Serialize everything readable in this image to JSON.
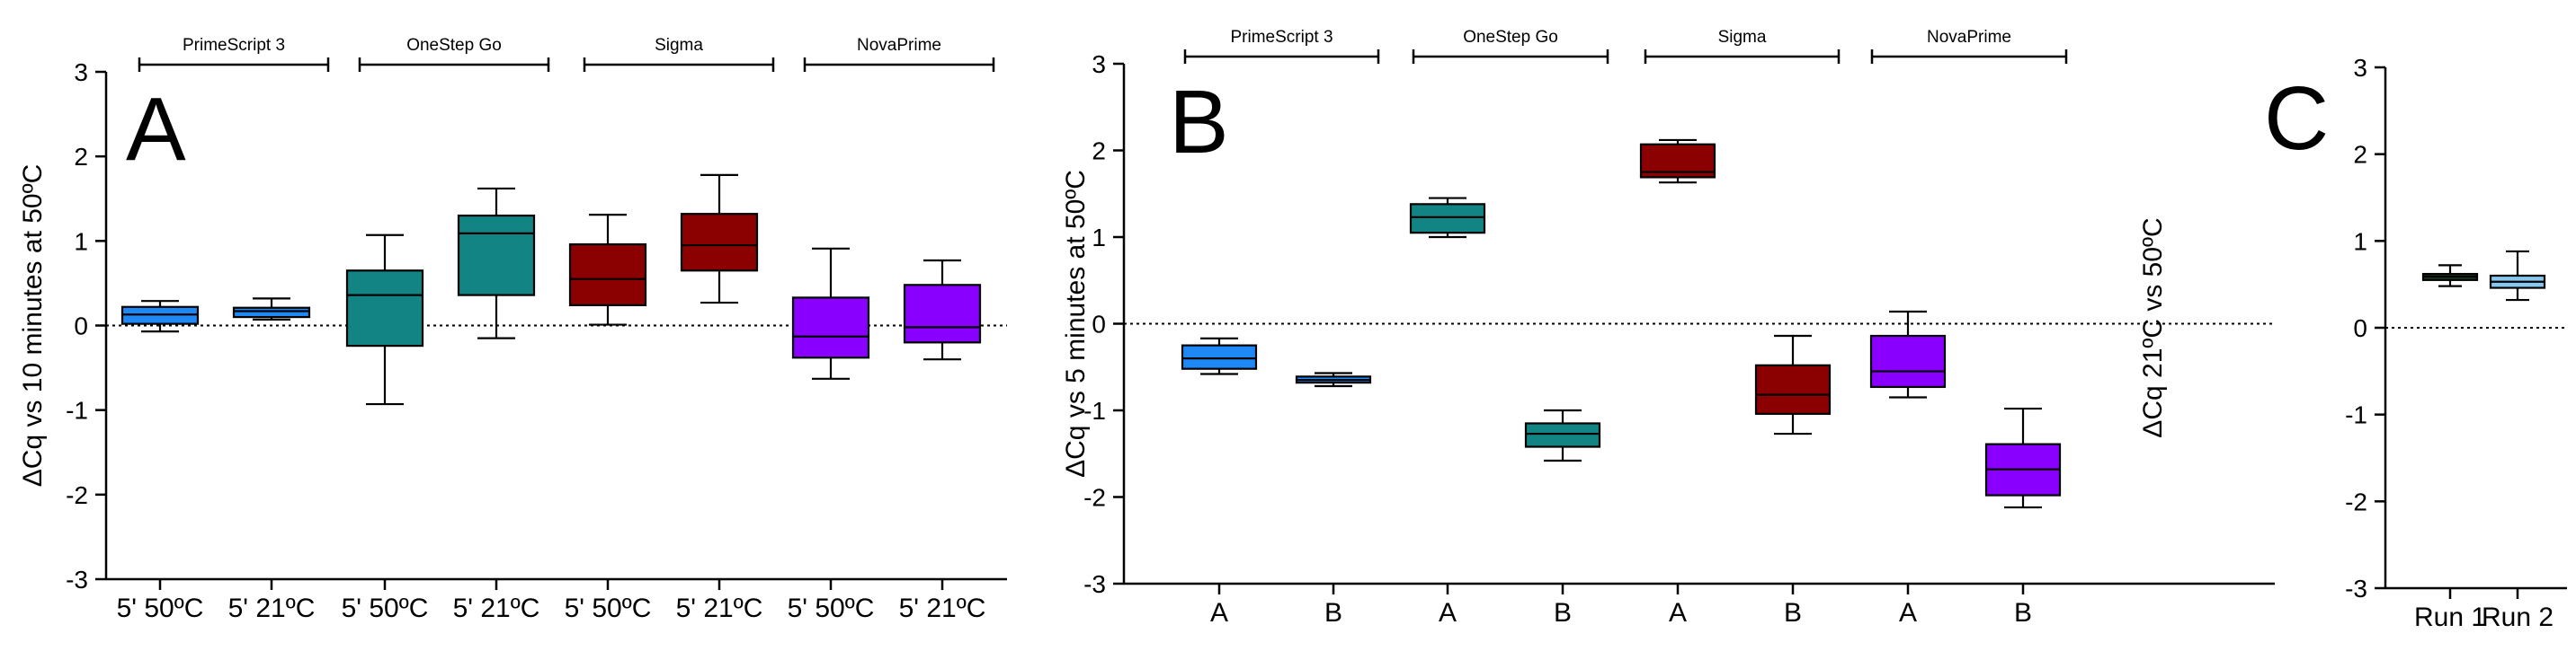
{
  "chart_data": [
    {
      "type": "box",
      "panel_label": "A",
      "ylabel": "ΔCq vs 10 minutes at 50ºC",
      "ylim": [
        -3,
        3
      ],
      "yticks": [
        "3",
        "2",
        "1",
        "0",
        "-1",
        "-2",
        "-3"
      ],
      "reference_line": 0,
      "groups": [
        "PrimeScript 3",
        "OneStep Go",
        "Sigma",
        "NovaPrime"
      ],
      "categories": [
        "5' 50ºC",
        "5' 21ºC",
        "5' 50ºC",
        "5' 21ºC",
        "5' 50ºC",
        "5' 21ºC",
        "5' 50ºC",
        "5' 21ºC"
      ],
      "boxes": [
        {
          "min": -0.07,
          "q1": 0.02,
          "median": 0.13,
          "q3": 0.22,
          "max": 0.29,
          "color": "#1e88f5"
        },
        {
          "min": 0.07,
          "q1": 0.1,
          "median": 0.17,
          "q3": 0.21,
          "max": 0.32,
          "color": "#1e88f5"
        },
        {
          "min": -0.93,
          "q1": -0.24,
          "median": 0.36,
          "q3": 0.65,
          "max": 1.07,
          "color": "#138484"
        },
        {
          "min": -0.15,
          "q1": 0.36,
          "median": 1.09,
          "q3": 1.3,
          "max": 1.62,
          "color": "#138484"
        },
        {
          "min": 0.01,
          "q1": 0.24,
          "median": 0.55,
          "q3": 0.96,
          "max": 1.31,
          "color": "#8b0000"
        },
        {
          "min": 0.27,
          "q1": 0.65,
          "median": 0.95,
          "q3": 1.32,
          "max": 1.78,
          "color": "#8b0000"
        },
        {
          "min": -0.63,
          "q1": -0.38,
          "median": -0.13,
          "q3": 0.33,
          "max": 0.91,
          "color": "#8a00ff"
        },
        {
          "min": -0.4,
          "q1": -0.2,
          "median": -0.02,
          "q3": 0.48,
          "max": 0.77,
          "color": "#8a00ff"
        }
      ]
    },
    {
      "type": "box",
      "panel_label": "B",
      "ylabel": "ΔCq vs 5 minutes at 50ºC",
      "ylim": [
        -3,
        3
      ],
      "yticks": [
        "3",
        "2",
        "1",
        "0",
        "-1",
        "-2",
        "-3"
      ],
      "reference_line": 0,
      "groups": [
        "PrimeScript 3",
        "OneStep Go",
        "Sigma",
        "NovaPrime"
      ],
      "categories": [
        "A",
        "B",
        "A",
        "B",
        "A",
        "B",
        "A",
        "B"
      ],
      "boxes": [
        {
          "min": -0.58,
          "q1": -0.52,
          "median": -0.4,
          "q3": -0.25,
          "max": -0.17,
          "color": "#1e88f5"
        },
        {
          "min": -0.72,
          "q1": -0.68,
          "median": -0.65,
          "q3": -0.61,
          "max": -0.57,
          "color": "#1e88f5"
        },
        {
          "min": 1.0,
          "q1": 1.05,
          "median": 1.23,
          "q3": 1.38,
          "max": 1.45,
          "color": "#138484"
        },
        {
          "min": -1.58,
          "q1": -1.42,
          "median": -1.27,
          "q3": -1.15,
          "max": -1.0,
          "color": "#138484"
        },
        {
          "min": 1.63,
          "q1": 1.69,
          "median": 1.75,
          "q3": 2.07,
          "max": 2.12,
          "color": "#8b0000"
        },
        {
          "min": -1.27,
          "q1": -1.04,
          "median": -0.82,
          "q3": -0.48,
          "max": -0.14,
          "color": "#8b0000"
        },
        {
          "min": -0.85,
          "q1": -0.73,
          "median": -0.55,
          "q3": -0.14,
          "max": 0.14,
          "color": "#8a00ff"
        },
        {
          "min": -2.12,
          "q1": -1.98,
          "median": -1.68,
          "q3": -1.39,
          "max": -0.98,
          "color": "#8a00ff"
        }
      ]
    },
    {
      "type": "box",
      "panel_label": "C",
      "ylabel": "ΔCq 21ºC vs 50ºC",
      "ylim": [
        -3,
        3
      ],
      "yticks": [
        "3",
        "2",
        "1",
        "0",
        "-1",
        "-2",
        "-3"
      ],
      "reference_line": 0,
      "categories": [
        "Run 1",
        "Run 2"
      ],
      "boxes": [
        {
          "min": 0.48,
          "q1": 0.55,
          "median": 0.59,
          "q3": 0.62,
          "max": 0.72,
          "color": "#1a3a1a"
        },
        {
          "min": 0.32,
          "q1": 0.46,
          "median": 0.53,
          "q3": 0.6,
          "max": 0.88,
          "color": "#87c8ee"
        }
      ]
    }
  ]
}
